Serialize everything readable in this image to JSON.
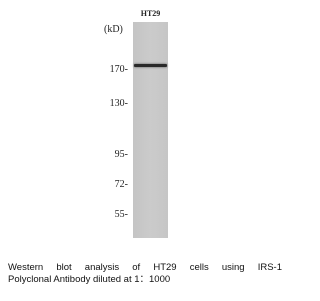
{
  "blot": {
    "lane_label": "HT29",
    "unit": "(kD)",
    "markers": [
      "170-",
      "130-",
      "95-",
      "72-",
      "55-"
    ]
  },
  "caption": {
    "lines": [
      "Western blot analysis of HT29 cells using IRS-1",
      "Polyclonal Antibody diluted at 1：1000"
    ]
  }
}
